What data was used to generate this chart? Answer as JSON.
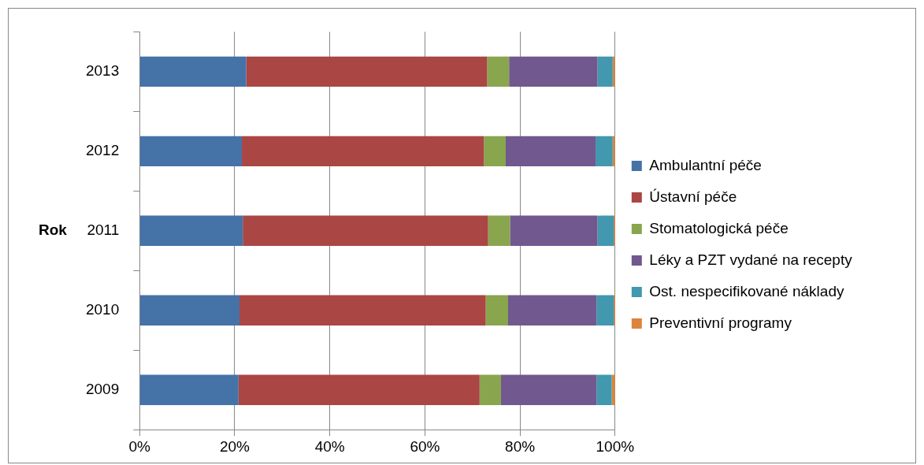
{
  "chart_data": {
    "type": "bar",
    "orientation": "horizontal",
    "stacked": true,
    "ylabel": "Rok",
    "categories": [
      "2013",
      "2012",
      "2011",
      "2010",
      "2009"
    ],
    "series": [
      {
        "name": "Ambulantní péče",
        "color": "#4572a7",
        "values": [
          22.4,
          21.5,
          21.7,
          21.0,
          20.8
        ]
      },
      {
        "name": "Ústavní péče",
        "color": "#aa4643",
        "values": [
          50.7,
          50.9,
          51.6,
          51.8,
          50.7
        ]
      },
      {
        "name": "Stomatologická péče",
        "color": "#89a54e",
        "values": [
          4.6,
          4.6,
          4.6,
          4.7,
          4.5
        ]
      },
      {
        "name": "Léky a PZT vydané na recepty",
        "color": "#71588f",
        "values": [
          18.6,
          18.9,
          18.4,
          18.6,
          20.1
        ]
      },
      {
        "name": "Ost. nespecifikované náklady",
        "color": "#4198af",
        "values": [
          3.2,
          3.6,
          3.4,
          3.6,
          3.2
        ]
      },
      {
        "name": "Preventivní programy",
        "color": "#db843d",
        "values": [
          0.5,
          0.5,
          0.3,
          0.3,
          0.7
        ]
      }
    ],
    "xlim": [
      0,
      100
    ],
    "xticks": [
      {
        "value": 0,
        "label": "0%"
      },
      {
        "value": 20,
        "label": "20%"
      },
      {
        "value": 40,
        "label": "40%"
      },
      {
        "value": 60,
        "label": "60%"
      },
      {
        "value": 80,
        "label": "80%"
      },
      {
        "value": 100,
        "label": "100%"
      }
    ],
    "grid": "x",
    "legend": "right"
  }
}
